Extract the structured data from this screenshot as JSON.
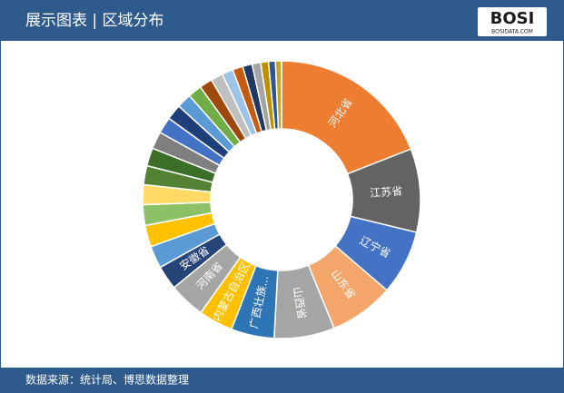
{
  "header": {
    "title": "展示图表 | 区域分布",
    "logo": "BOSI",
    "logo_sub": "BOSIDATA.COM"
  },
  "footer": {
    "source": "数据来源：统计局、博思数据整理"
  },
  "chart_data": {
    "type": "donut",
    "categories": [
      "河北省",
      "江苏省",
      "辽宁省",
      "山东省",
      "山西省",
      "广西壮族...",
      "内蒙古自治区",
      "河南省",
      "安徽省",
      null,
      null,
      null,
      null,
      null,
      null,
      null,
      null,
      null,
      null,
      null,
      null,
      null,
      null,
      null,
      null,
      null,
      null,
      null,
      null
    ],
    "values": [
      19,
      9.7,
      7.5,
      7.5,
      7,
      5,
      4,
      4.2,
      2.8,
      2.6,
      2.5,
      2.4,
      2.3,
      2.2,
      2.1,
      2.0,
      1.9,
      1.8,
      1.7,
      1.6,
      1.5,
      1.4,
      1.3,
      1.2,
      1.1,
      1.0,
      0.9,
      0.8,
      0.7
    ],
    "colors": [
      "#ED7D31",
      "#636363",
      "#4472C4",
      "#F4A66A",
      "#A5A5A5",
      "#2E75B6",
      "#FFC000",
      "#A5A5A5",
      "#264478",
      "#5B9BD5",
      "#FFC000",
      "#8CC168",
      "#FFD966",
      "#548235",
      "#3B6E27",
      "#7F7F7F",
      "#4472C4",
      "#1F3F7A",
      "#5B9BD5",
      "#70AD47",
      "#9E480E",
      "#BFBFBF",
      "#9DC3E6",
      "#C55A11",
      "#1F3864",
      "#A5A5A5",
      "#BF9000",
      "#2F5597",
      "#C9A227"
    ]
  }
}
